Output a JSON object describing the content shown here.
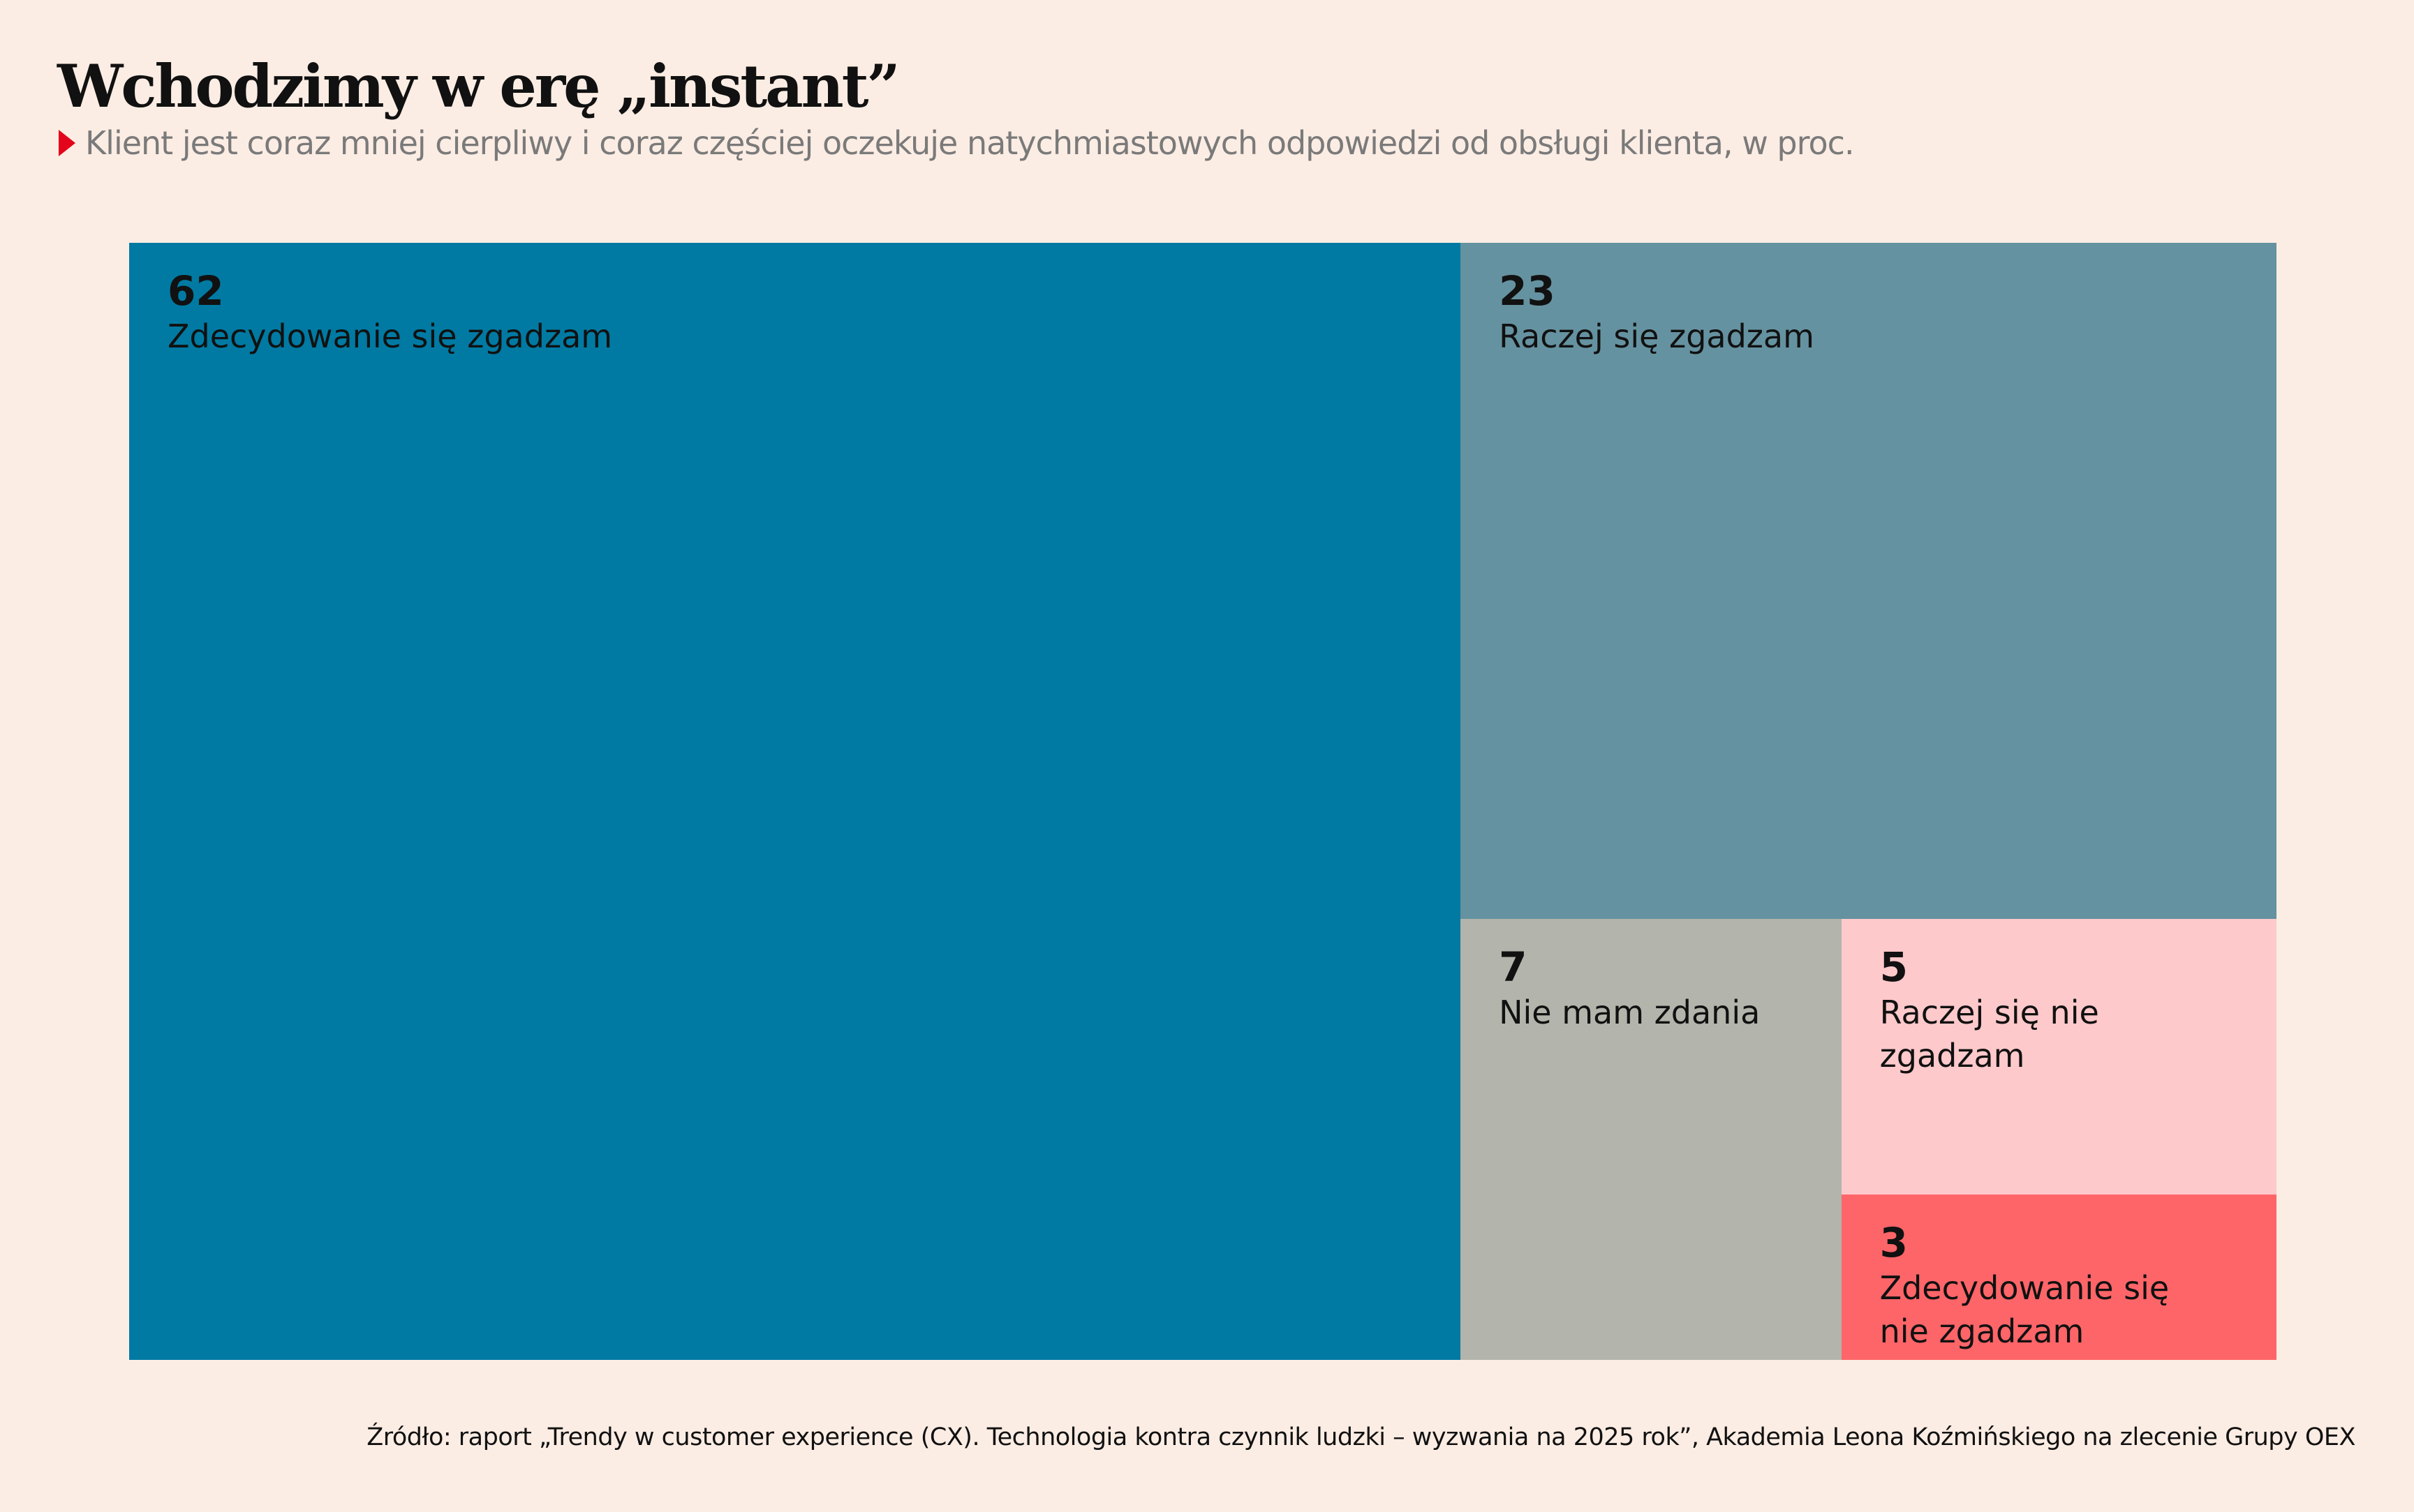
{
  "chart_data": {
    "type": "treemap",
    "title": "Wchodzimy w erę „instant”",
    "subtitle": "Klient jest coraz mniej cierpliwy i coraz częściej oczekuje natychmiastowych odpowiedzi od obsługi klienta, w proc.",
    "categories": [
      "Zdecydowanie się zgadzam",
      "Raczej się zgadzam",
      "Nie mam zdania",
      "Raczej się nie zgadzam",
      "Zdecydowanie się nie zgadzam"
    ],
    "values": [
      62,
      23,
      7,
      5,
      3
    ],
    "colors": [
      "#007aa3",
      "#6592a0",
      "#b3b4ab",
      "#fec9cb",
      "#fe6568"
    ],
    "source": "Źródło: raport „Trendy w customer experience (CX). Technologia kontra czynnik ludzki – wyzwania na 2025 rok”, Akademia Leona Koźmińskiego na zlecenie Grupy OEX"
  }
}
